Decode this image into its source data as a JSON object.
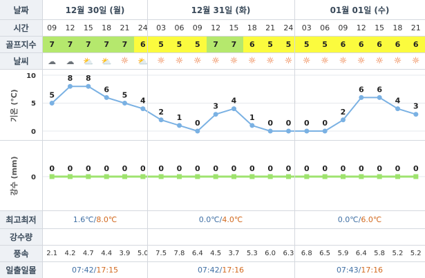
{
  "labels": {
    "date": "날짜",
    "time": "시간",
    "golf": "골프지수",
    "weather": "날씨",
    "temp_axis": "기온 (℃)",
    "rain_axis": "강수 (mm)",
    "minmax": "최고최저",
    "precip": "강수량",
    "wind": "풍속",
    "sun": "일출일몰"
  },
  "dates": [
    "12월 30일 (월)",
    "12월 31일 (화)",
    "01월 01일 (수)"
  ],
  "times": [
    "09",
    "12",
    "15",
    "18",
    "21",
    "24",
    "03",
    "06",
    "09",
    "12",
    "15",
    "18",
    "21",
    "24",
    "03",
    "06",
    "09",
    "12",
    "15",
    "18",
    "21"
  ],
  "golf_index": [
    7,
    7,
    7,
    7,
    7,
    6,
    5,
    5,
    5,
    7,
    7,
    6,
    5,
    5,
    5,
    5,
    6,
    6,
    6,
    6,
    6
  ],
  "weather_icons": [
    "cloud-icon",
    "cloud-icon",
    "sun-cloud-icon",
    "sun-cloud-icon",
    "sun-icon",
    "sun-cloud-icon",
    "sun-icon",
    "sun-icon",
    "sun-icon",
    "sun-icon",
    "sun-icon",
    "sun-icon",
    "sun-icon",
    "sun-icon",
    "sun-icon",
    "sun-icon",
    "sun-icon",
    "sun-icon",
    "sun-icon",
    "sun-icon",
    "sun-icon"
  ],
  "minmax": [
    {
      "low": "1.6℃",
      "sep": "/",
      "high": "8.0℃"
    },
    {
      "low": "0.0℃",
      "sep": "/",
      "high": "4.0℃"
    },
    {
      "low": "0.0℃",
      "sep": "/",
      "high": "6.0℃"
    }
  ],
  "wind": [
    "2.1",
    "4.2",
    "4.7",
    "4.4",
    "3.9",
    "5.0",
    "7.5",
    "7.8",
    "6.4",
    "4.5",
    "3.7",
    "5.3",
    "6.0",
    "6.3",
    "6.8",
    "6.5",
    "5.9",
    "6.4",
    "5.8",
    "5.2",
    "5.2"
  ],
  "sunrise_sunset": [
    {
      "rise": "07:42",
      "sep": "/",
      "set": "17:15"
    },
    {
      "rise": "07:42",
      "sep": "/",
      "set": "17:16"
    },
    {
      "rise": "07:43",
      "sep": "/",
      "set": "17:16"
    }
  ],
  "colors": {
    "line": "#7ab1e3",
    "rain": "#9ee36e",
    "golf7": "#b5e86d",
    "golf_low": "#fbfb3e"
  },
  "chart_data": [
    {
      "type": "line",
      "title": "",
      "ylabel": "기온 (℃)",
      "yticks": [
        0,
        5,
        10
      ],
      "ylim": [
        0,
        10
      ],
      "x": [
        "09",
        "12",
        "15",
        "18",
        "21",
        "24",
        "03",
        "06",
        "09",
        "12",
        "15",
        "18",
        "21",
        "24",
        "03",
        "06",
        "09",
        "12",
        "15",
        "18",
        "21"
      ],
      "values": [
        5,
        8,
        8,
        6,
        5,
        4,
        2,
        1,
        0,
        3,
        4,
        1,
        0,
        0,
        0,
        0,
        2,
        6,
        6,
        4,
        3
      ],
      "grid": true
    },
    {
      "type": "line",
      "title": "",
      "ylabel": "강수 (mm)",
      "yticks": [
        0
      ],
      "x": [
        "09",
        "12",
        "15",
        "18",
        "21",
        "24",
        "03",
        "06",
        "09",
        "12",
        "15",
        "18",
        "21",
        "24",
        "03",
        "06",
        "09",
        "12",
        "15",
        "18",
        "21"
      ],
      "values": [
        0,
        0,
        0,
        0,
        0,
        0,
        0,
        0,
        0,
        0,
        0,
        0,
        0,
        0,
        0,
        0,
        0,
        0,
        0,
        0,
        0
      ],
      "grid": true
    }
  ]
}
